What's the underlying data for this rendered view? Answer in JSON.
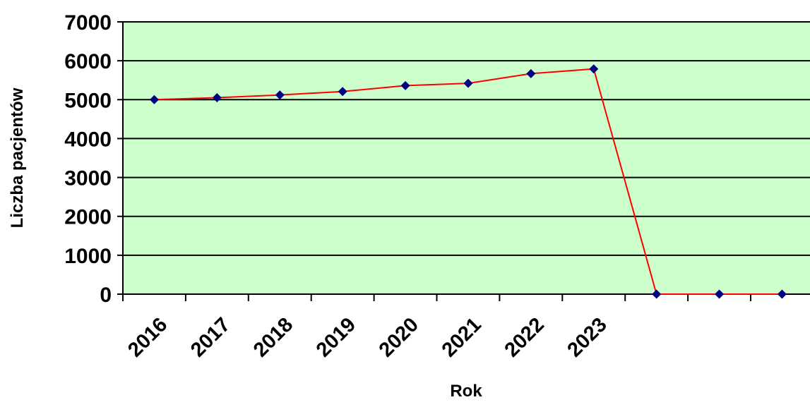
{
  "chart_data": {
    "type": "line",
    "xlabel": "Rok",
    "ylabel": "Liczba pacjentów",
    "ylim": [
      0,
      7000
    ],
    "yticks": [
      "0",
      "1000",
      "2000",
      "3000",
      "4000",
      "5000",
      "6000",
      "7000"
    ],
    "categories": [
      "2016",
      "2017",
      "2018",
      "2019",
      "2020",
      "2021",
      "2022",
      "2023",
      "",
      "",
      ""
    ],
    "series": [
      {
        "values": [
          5000,
          5050,
          5120,
          5210,
          5360,
          5420,
          5670,
          5790,
          0,
          0,
          0
        ]
      }
    ],
    "grid": true,
    "legend": "none",
    "colors": {
      "plot_background": "#ccffcc",
      "line": "#ff0000",
      "marker": "#000080",
      "gridline": "#000000"
    }
  }
}
